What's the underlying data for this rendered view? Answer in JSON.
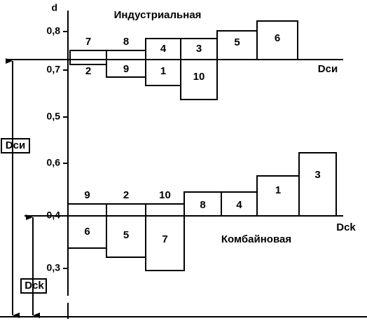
{
  "axis": {
    "label": "d",
    "ticks": [
      "0,8",
      "0,7",
      "0,5",
      "0,6",
      "0,4",
      "0,3"
    ]
  },
  "groups": [
    {
      "title": "Индустриальная",
      "baseline_label": "Dси",
      "boxes": [
        "7",
        "8",
        "4",
        "3",
        "5",
        "6",
        "2",
        "9",
        "1",
        "10"
      ]
    },
    {
      "title": "Комбайновая",
      "baseline_label": "Dck",
      "boxes": [
        "9",
        "2",
        "10",
        "8",
        "4",
        "1",
        "3",
        "6",
        "5",
        "7"
      ]
    }
  ],
  "dimensions": [
    "Dси",
    "Dck"
  ]
}
